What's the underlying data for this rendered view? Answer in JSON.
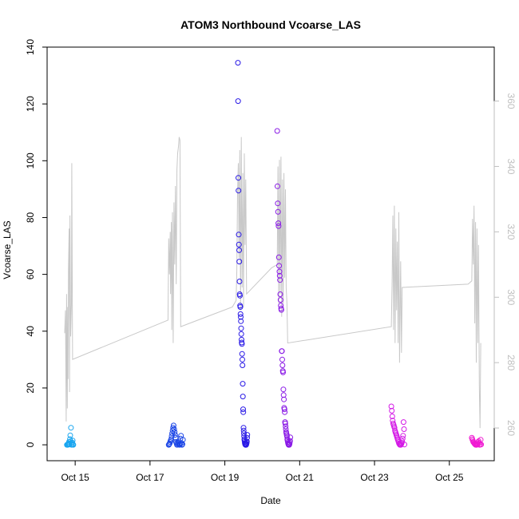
{
  "chart_data": {
    "type": "scatter",
    "title": "ATOM3 Northbound Vcoarse_LAS",
    "xlabel": "Date",
    "ylabel": "Vcoarse_LAS",
    "x_tick_labels": [
      "Oct 15",
      "Oct 17",
      "Oct 19",
      "Oct 21",
      "Oct 23",
      "Oct 25"
    ],
    "x_tick_days": [
      15,
      17,
      19,
      21,
      23,
      25
    ],
    "xlim": [
      14.25,
      26.2
    ],
    "ylim": [
      -5.6,
      140
    ],
    "y_ticks": [
      0,
      20,
      40,
      60,
      80,
      100,
      120,
      140
    ],
    "y2_ticks": [
      260,
      280,
      300,
      320,
      340,
      360
    ],
    "y2lim": [
      250,
      376.5
    ],
    "colors": {
      "secondary_line": "#c8c8c8",
      "axis": "#000000",
      "right_axis": "#bfbfbf"
    },
    "point_clusters": [
      {
        "x_start": 14.78,
        "x_end": 14.95,
        "color": "#1aa6f0",
        "values": [
          0,
          0,
          0,
          0.2,
          0.3,
          0.5,
          1.0,
          0.1,
          0.4,
          2.0,
          3.3,
          1.2,
          6.0,
          0.7,
          0,
          0.3,
          0.8,
          1.5,
          0.2,
          0
        ]
      },
      {
        "x_start": 17.5,
        "x_end": 17.88,
        "color": "#1a45e6",
        "values": [
          0,
          0.2,
          0.5,
          1.0,
          1.5,
          2.0,
          3.0,
          4.0,
          5.0,
          6.0,
          6.8,
          5.5,
          4.5,
          3.5,
          2.5,
          1.0,
          0.5,
          0,
          0.3,
          0.8,
          1.2,
          0.1,
          0,
          0.4,
          2.2,
          3.2,
          0.6,
          0,
          0.2,
          1.8
        ]
      },
      {
        "x_start": 19.35,
        "x_end": 19.6,
        "color": "#2a1ae6",
        "values": [
          134.5,
          121,
          94,
          89.5,
          74,
          70.5,
          68.5,
          64.5,
          57.5,
          53,
          52.5,
          49,
          48.5,
          46,
          45,
          43.5,
          41,
          39,
          37,
          36,
          35.5,
          32,
          30,
          28,
          21.5,
          17,
          12.5,
          11.5,
          6,
          5,
          4,
          3,
          2,
          1.5,
          1,
          0.5,
          0.3,
          0.1,
          0,
          0,
          0,
          0,
          0.2,
          0.4,
          0.8,
          1.2,
          2.5,
          3.5
        ]
      },
      {
        "x_start": 20.4,
        "x_end": 20.75,
        "color": "#8a1ae6",
        "values": [
          110.5,
          91,
          85,
          82,
          78,
          77,
          66,
          63,
          61,
          59.5,
          58,
          53,
          51,
          49,
          48,
          47.5,
          33,
          33,
          30,
          28,
          26,
          25.5,
          19.5,
          17.5,
          16,
          13,
          12.5,
          11.5,
          8,
          7.5,
          6.5,
          5.5,
          4.5,
          4,
          3.5,
          3,
          2,
          1.5,
          1,
          0.5,
          0.2,
          0,
          0,
          0,
          0.3,
          0.8,
          1.4,
          2.6
        ]
      },
      {
        "x_start": 23.45,
        "x_end": 23.8,
        "color": "#d41ae6",
        "values": [
          13.5,
          12,
          10,
          8.5,
          7.5,
          7,
          6.5,
          6,
          5,
          4.5,
          4,
          3.5,
          3,
          2.5,
          2,
          1.5,
          1,
          0.5,
          0.2,
          0,
          0,
          0,
          0.3,
          0.7,
          1.2,
          2.2,
          3.2,
          8,
          5.5,
          0.1
        ]
      },
      {
        "x_start": 25.6,
        "x_end": 25.85,
        "color": "#f01ad2",
        "values": [
          2.5,
          2,
          1.5,
          1,
          0.8,
          0.5,
          0.3,
          0.1,
          0,
          0,
          0,
          0.2,
          0.4,
          0.9,
          1.3,
          0.6,
          0,
          0.2,
          1.8,
          0.1
        ]
      }
    ],
    "secondary_line_points": [
      [
        14.72,
        289
      ],
      [
        14.74,
        296
      ],
      [
        14.76,
        262
      ],
      [
        14.77,
        301
      ],
      [
        14.79,
        266
      ],
      [
        14.8,
        297
      ],
      [
        14.81,
        275
      ],
      [
        14.82,
        308
      ],
      [
        14.84,
        321
      ],
      [
        14.85,
        271
      ],
      [
        14.86,
        325
      ],
      [
        14.88,
        288
      ],
      [
        14.9,
        298
      ],
      [
        14.91,
        341
      ],
      [
        14.93,
        281
      ],
      [
        17.48,
        293
      ],
      [
        17.5,
        318
      ],
      [
        17.52,
        307
      ],
      [
        17.54,
        320
      ],
      [
        17.55,
        301
      ],
      [
        17.57,
        323
      ],
      [
        17.58,
        290
      ],
      [
        17.6,
        326
      ],
      [
        17.62,
        286
      ],
      [
        17.64,
        329
      ],
      [
        17.66,
        310
      ],
      [
        17.68,
        334
      ],
      [
        17.7,
        304
      ],
      [
        17.72,
        339
      ],
      [
        17.74,
        344
      ],
      [
        17.76,
        346
      ],
      [
        17.78,
        349
      ],
      [
        17.8,
        348
      ],
      [
        17.82,
        291
      ],
      [
        19.2,
        297
      ],
      [
        19.3,
        299
      ],
      [
        19.32,
        308
      ],
      [
        19.34,
        332
      ],
      [
        19.36,
        341
      ],
      [
        19.38,
        312
      ],
      [
        19.4,
        345
      ],
      [
        19.42,
        296
      ],
      [
        19.44,
        349
      ],
      [
        19.46,
        303
      ],
      [
        19.48,
        338
      ],
      [
        19.5,
        297
      ],
      [
        19.52,
        344
      ],
      [
        19.54,
        316
      ],
      [
        19.56,
        336
      ],
      [
        19.58,
        301
      ],
      [
        20.25,
        309
      ],
      [
        20.4,
        310
      ],
      [
        20.42,
        340
      ],
      [
        20.44,
        298
      ],
      [
        20.46,
        342
      ],
      [
        20.48,
        301
      ],
      [
        20.5,
        343
      ],
      [
        20.52,
        294
      ],
      [
        20.54,
        336
      ],
      [
        20.56,
        298
      ],
      [
        20.58,
        338
      ],
      [
        20.6,
        306
      ],
      [
        20.62,
        333
      ],
      [
        20.64,
        303
      ],
      [
        20.66,
        298
      ],
      [
        20.68,
        286
      ],
      [
        23.45,
        291
      ],
      [
        23.47,
        305
      ],
      [
        23.49,
        325
      ],
      [
        23.51,
        290
      ],
      [
        23.53,
        328
      ],
      [
        23.55,
        286
      ],
      [
        23.57,
        321
      ],
      [
        23.59,
        296
      ],
      [
        23.61,
        317
      ],
      [
        23.63,
        286
      ],
      [
        23.65,
        326
      ],
      [
        23.67,
        280
      ],
      [
        23.7,
        311
      ],
      [
        23.72,
        283
      ],
      [
        23.74,
        303
      ],
      [
        25.5,
        304
      ],
      [
        25.6,
        305
      ],
      [
        25.62,
        324
      ],
      [
        25.64,
        310
      ],
      [
        25.66,
        328
      ],
      [
        25.68,
        292
      ],
      [
        25.7,
        323
      ],
      [
        25.72,
        280
      ],
      [
        25.74,
        321
      ],
      [
        25.76,
        286
      ],
      [
        25.78,
        316
      ],
      [
        25.8,
        273
      ],
      [
        25.82,
        260
      ],
      [
        25.84,
        286
      ]
    ]
  }
}
